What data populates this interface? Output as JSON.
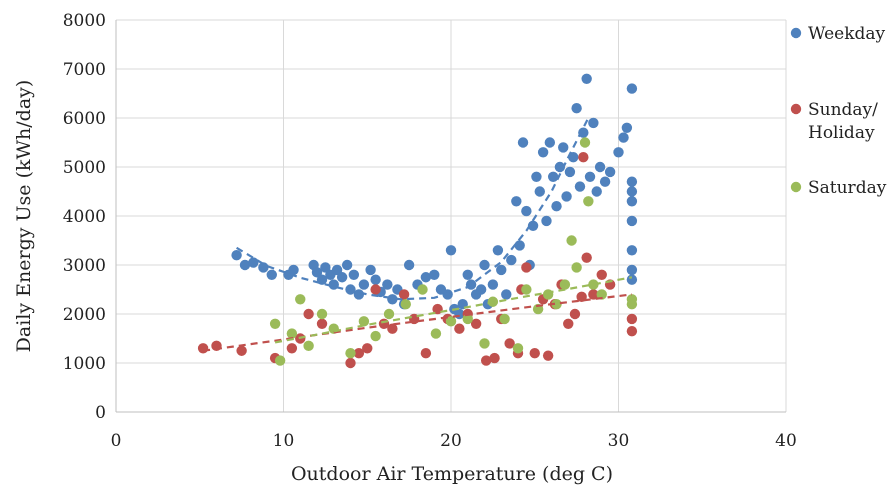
{
  "chart_data": {
    "type": "scatter",
    "title": "",
    "xlabel": "Outdoor Air Temperature (deg C)",
    "ylabel": "Daily Energy Use (kWh/day)",
    "xlim": [
      0,
      40
    ],
    "ylim": [
      0,
      8000
    ],
    "x_ticks": [
      "0",
      "10",
      "20",
      "30",
      "40"
    ],
    "y_ticks": [
      "0",
      "1000",
      "2000",
      "3000",
      "4000",
      "5000",
      "6000",
      "7000",
      "8000"
    ],
    "grid": true,
    "legend_position": "right",
    "series": [
      {
        "name": "Weekday",
        "color": "#4f81bd",
        "trendline": [
          [
            7.2,
            3350
          ],
          [
            9,
            2980
          ],
          [
            11,
            2740
          ],
          [
            13,
            2560
          ],
          [
            15,
            2400
          ],
          [
            17,
            2300
          ],
          [
            19,
            2330
          ],
          [
            21,
            2550
          ],
          [
            23,
            3060
          ],
          [
            24.5,
            3700
          ],
          [
            26,
            4500
          ],
          [
            27,
            5200
          ],
          [
            28.2,
            6000
          ]
        ],
        "points": [
          [
            7.2,
            3200
          ],
          [
            7.7,
            3000
          ],
          [
            8.2,
            3050
          ],
          [
            8.8,
            2950
          ],
          [
            9.3,
            2800
          ],
          [
            10.3,
            2800
          ],
          [
            10.6,
            2900
          ],
          [
            11.8,
            3000
          ],
          [
            12,
            2850
          ],
          [
            12.3,
            2700
          ],
          [
            12.5,
            2950
          ],
          [
            12.8,
            2800
          ],
          [
            13,
            2600
          ],
          [
            13.2,
            2900
          ],
          [
            13.5,
            2750
          ],
          [
            13.8,
            3000
          ],
          [
            14,
            2500
          ],
          [
            14.2,
            2800
          ],
          [
            14.5,
            2400
          ],
          [
            14.8,
            2600
          ],
          [
            15.2,
            2900
          ],
          [
            15.5,
            2700
          ],
          [
            15.8,
            2450
          ],
          [
            16.2,
            2600
          ],
          [
            16.5,
            2300
          ],
          [
            16.8,
            2500
          ],
          [
            17.2,
            2200
          ],
          [
            17.5,
            3000
          ],
          [
            18,
            2600
          ],
          [
            18.5,
            2750
          ],
          [
            19,
            2800
          ],
          [
            19.4,
            2500
          ],
          [
            19.8,
            2400
          ],
          [
            20,
            3300
          ],
          [
            20.2,
            2100
          ],
          [
            20.5,
            2000
          ],
          [
            20.7,
            2200
          ],
          [
            21,
            2800
          ],
          [
            21.2,
            2600
          ],
          [
            21.5,
            2400
          ],
          [
            21.8,
            2500
          ],
          [
            22,
            3000
          ],
          [
            22.2,
            2200
          ],
          [
            22.5,
            2600
          ],
          [
            22.8,
            3300
          ],
          [
            23,
            2900
          ],
          [
            23.3,
            2400
          ],
          [
            23.6,
            3100
          ],
          [
            23.9,
            4300
          ],
          [
            24.1,
            3400
          ],
          [
            24.3,
            5500
          ],
          [
            24.5,
            4100
          ],
          [
            24.7,
            3000
          ],
          [
            24.9,
            3800
          ],
          [
            25.1,
            4800
          ],
          [
            25.3,
            4500
          ],
          [
            25.5,
            5300
          ],
          [
            25.7,
            3900
          ],
          [
            25.9,
            5500
          ],
          [
            26.1,
            4800
          ],
          [
            26.3,
            4200
          ],
          [
            26.5,
            5000
          ],
          [
            26.7,
            5400
          ],
          [
            26.9,
            4400
          ],
          [
            27.1,
            4900
          ],
          [
            27.3,
            5200
          ],
          [
            27.5,
            6200
          ],
          [
            27.7,
            4600
          ],
          [
            27.9,
            5700
          ],
          [
            28.1,
            6800
          ],
          [
            28.3,
            4800
          ],
          [
            28.5,
            5900
          ],
          [
            28.7,
            4500
          ],
          [
            28.9,
            5000
          ],
          [
            29.2,
            4700
          ],
          [
            29.5,
            4900
          ],
          [
            30,
            5300
          ],
          [
            30.3,
            5600
          ],
          [
            30.5,
            5800
          ],
          [
            30.8,
            6600
          ],
          [
            30.8,
            4700
          ],
          [
            30.8,
            4500
          ],
          [
            30.8,
            4300
          ],
          [
            30.8,
            3900
          ],
          [
            30.8,
            3300
          ],
          [
            30.8,
            2900
          ],
          [
            30.8,
            2700
          ]
        ]
      },
      {
        "name": "Sunday/ Holiday",
        "color": "#c0504d",
        "trendline": [
          [
            5.2,
            1250
          ],
          [
            10,
            1480
          ],
          [
            15,
            1720
          ],
          [
            20,
            1940
          ],
          [
            25,
            2160
          ],
          [
            30.8,
            2400
          ]
        ],
        "points": [
          [
            5.2,
            1300
          ],
          [
            6,
            1350
          ],
          [
            7.5,
            1250
          ],
          [
            9.5,
            1100
          ],
          [
            10.5,
            1300
          ],
          [
            11,
            1500
          ],
          [
            11.5,
            2000
          ],
          [
            12.3,
            1800
          ],
          [
            14,
            1000
          ],
          [
            14.5,
            1200
          ],
          [
            15,
            1300
          ],
          [
            15.5,
            2500
          ],
          [
            16,
            1800
          ],
          [
            16.5,
            1700
          ],
          [
            17.2,
            2400
          ],
          [
            17.8,
            1900
          ],
          [
            18.5,
            1200
          ],
          [
            19.2,
            2100
          ],
          [
            19.8,
            1900
          ],
          [
            20.5,
            1700
          ],
          [
            21,
            2000
          ],
          [
            21.5,
            1800
          ],
          [
            22.1,
            1050
          ],
          [
            22.6,
            1100
          ],
          [
            23,
            1900
          ],
          [
            23.5,
            1400
          ],
          [
            24,
            1200
          ],
          [
            24.2,
            2500
          ],
          [
            24.5,
            2950
          ],
          [
            25,
            1200
          ],
          [
            25.5,
            2300
          ],
          [
            25.8,
            1150
          ],
          [
            26.2,
            2200
          ],
          [
            26.6,
            2600
          ],
          [
            27,
            1800
          ],
          [
            27.4,
            2000
          ],
          [
            27.8,
            2350
          ],
          [
            28.1,
            3150
          ],
          [
            27.9,
            5200
          ],
          [
            28.5,
            2400
          ],
          [
            29,
            2800
          ],
          [
            29.5,
            2600
          ],
          [
            30.8,
            1900
          ],
          [
            30.8,
            1650
          ]
        ]
      },
      {
        "name": "Saturday",
        "color": "#9bbb59",
        "trendline": [
          [
            9.5,
            1420
          ],
          [
            12,
            1580
          ],
          [
            15,
            1780
          ],
          [
            18,
            1960
          ],
          [
            21,
            2140
          ],
          [
            24,
            2330
          ],
          [
            27,
            2510
          ],
          [
            30.8,
            2750
          ]
        ],
        "points": [
          [
            9.5,
            1800
          ],
          [
            9.8,
            1050
          ],
          [
            10.5,
            1600
          ],
          [
            11,
            2300
          ],
          [
            11.5,
            1350
          ],
          [
            12.3,
            2000
          ],
          [
            13,
            1700
          ],
          [
            14,
            1200
          ],
          [
            14.8,
            1850
          ],
          [
            15.5,
            1550
          ],
          [
            16.3,
            2000
          ],
          [
            17.3,
            2200
          ],
          [
            18.3,
            2500
          ],
          [
            19.1,
            1600
          ],
          [
            20,
            1850
          ],
          [
            21,
            1900
          ],
          [
            22,
            1400
          ],
          [
            22.5,
            2250
          ],
          [
            23.2,
            1900
          ],
          [
            24,
            1300
          ],
          [
            24.5,
            2500
          ],
          [
            25.2,
            2100
          ],
          [
            25.8,
            2400
          ],
          [
            26.3,
            2200
          ],
          [
            26.8,
            2600
          ],
          [
            27.2,
            3500
          ],
          [
            27.5,
            2950
          ],
          [
            28,
            5500
          ],
          [
            28.2,
            4300
          ],
          [
            28.5,
            2600
          ],
          [
            29,
            2400
          ],
          [
            30.8,
            2300
          ],
          [
            30.8,
            2200
          ]
        ]
      }
    ]
  }
}
